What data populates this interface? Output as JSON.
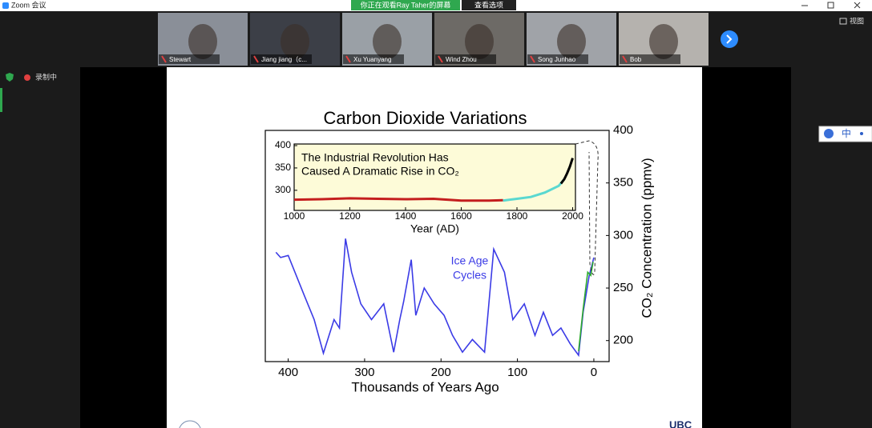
{
  "window": {
    "title": "Zoom 会议",
    "share_banner": "你正在观看Ray Taher的屏幕",
    "view_options": "查看选项",
    "view_button": "视图",
    "recording": "录制中",
    "ime": "中"
  },
  "participants": [
    {
      "name": "Stewart"
    },
    {
      "name": "Jiang jiang（c..."
    },
    {
      "name": "Xu Yuanyang"
    },
    {
      "name": "Wind Zhou"
    },
    {
      "name": "Song Junhao"
    },
    {
      "name": "Bob"
    }
  ],
  "slide": {
    "logo": "UBC"
  },
  "chart_data": [
    {
      "type": "line",
      "title": "Carbon Dioxide Variations",
      "x_label": "Thousands of Years Ago",
      "y_label": "CO₂ Concentration (ppmv)",
      "annotation": [
        "Ice Age",
        "Cycles"
      ],
      "xlim": [
        430,
        -20
      ],
      "xticks": [
        400,
        300,
        200,
        100,
        0
      ],
      "ylim": [
        180,
        400
      ],
      "yticks": [
        200,
        250,
        300,
        350,
        400
      ],
      "series": [
        {
          "color": "#3b3be6",
          "x": [
            416,
            410,
            400,
            379,
            366,
            354,
            340,
            333,
            325,
            317,
            305,
            291,
            275,
            262,
            254,
            249,
            239,
            233,
            222,
            209,
            196,
            185,
            172,
            159,
            143,
            131,
            117,
            106,
            91,
            77,
            66,
            54,
            43,
            31,
            20,
            14,
            6,
            2,
            0
          ],
          "values": [
            284,
            279,
            281,
            243,
            220,
            188,
            220,
            212,
            297,
            265,
            235,
            220,
            235,
            189,
            220,
            237,
            277,
            224,
            250,
            235,
            224,
            205,
            189,
            201,
            189,
            287,
            265,
            220,
            235,
            205,
            227,
            205,
            212,
            197,
            186,
            227,
            262,
            273,
            279
          ]
        },
        {
          "color": "#2eaa2e",
          "x": [
            20,
            14,
            8,
            4,
            1
          ],
          "values": [
            190,
            230,
            265,
            262,
            275
          ]
        }
      ]
    },
    {
      "type": "line",
      "title": [
        "The Industrial Revolution Has",
        "Caused A Dramatic Rise in CO₂"
      ],
      "x_label": "Year (AD)",
      "xlim": [
        1000,
        2010
      ],
      "xticks": [
        1000,
        1200,
        1400,
        1600,
        1800,
        2000
      ],
      "ylim": [
        255,
        400
      ],
      "yticks": [
        300,
        350,
        400
      ],
      "series": [
        {
          "color": "#c41e1e",
          "x": [
            1000,
            1100,
            1200,
            1300,
            1400,
            1500,
            1600,
            1700,
            1750
          ],
          "values": [
            279,
            280,
            282,
            281,
            280,
            281,
            277,
            277,
            278
          ]
        },
        {
          "color": "#5ad8d0",
          "x": [
            1750,
            1800,
            1850,
            1900,
            1950,
            1970
          ],
          "values": [
            277,
            281,
            285,
            295,
            310,
            325
          ]
        },
        {
          "color": "#000000",
          "x": [
            1958,
            1970,
            1980,
            1990,
            2000
          ],
          "values": [
            315,
            325,
            338,
            353,
            372
          ]
        }
      ]
    }
  ]
}
